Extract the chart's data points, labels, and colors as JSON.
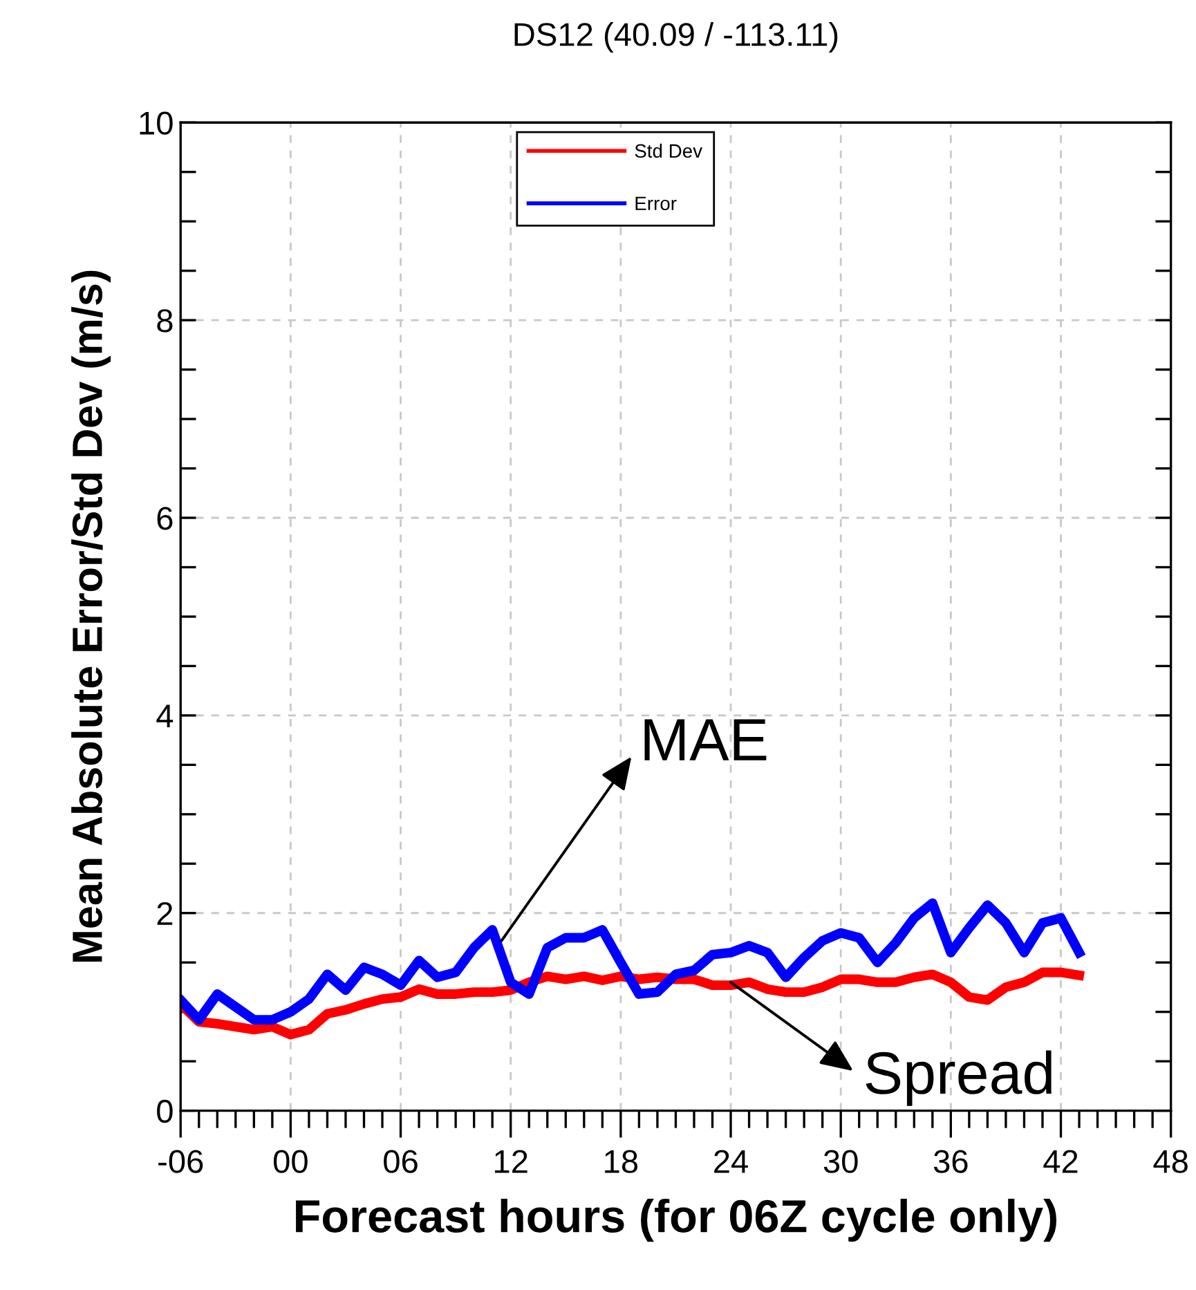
{
  "chart_data": {
    "type": "line",
    "title": "DS12 (40.09 / -113.11)",
    "xlabel": "Forecast hours (for 06Z cycle only)",
    "ylabel": "Mean Absolute Error/Std Dev (m/s)",
    "x": [
      -6,
      -5,
      -4,
      -3,
      -2,
      -1,
      0,
      1,
      2,
      3,
      4,
      5,
      6,
      7,
      8,
      9,
      10,
      11,
      12,
      13,
      14,
      15,
      16,
      17,
      18,
      19,
      20,
      21,
      22,
      23,
      24,
      25,
      26,
      27,
      28,
      29,
      30,
      31,
      32,
      33,
      34,
      35,
      36,
      37,
      38,
      39,
      40,
      41,
      42,
      43
    ],
    "series": [
      {
        "name": "Std Dev",
        "color": "#ff0000",
        "values": [
          1.08,
          0.9,
          0.88,
          0.85,
          0.82,
          0.85,
          0.77,
          0.82,
          0.98,
          1.02,
          1.08,
          1.13,
          1.15,
          1.23,
          1.18,
          1.18,
          1.2,
          1.2,
          1.22,
          1.3,
          1.36,
          1.33,
          1.36,
          1.32,
          1.36,
          1.33,
          1.35,
          1.33,
          1.33,
          1.27,
          1.27,
          1.3,
          1.23,
          1.2,
          1.2,
          1.25,
          1.33,
          1.33,
          1.3,
          1.3,
          1.35,
          1.38,
          1.3,
          1.15,
          1.12,
          1.25,
          1.3,
          1.4,
          1.4,
          1.37
        ]
      },
      {
        "name": "Error",
        "color": "#0000ff",
        "values": [
          1.12,
          0.92,
          1.18,
          1.05,
          0.92,
          0.92,
          1.0,
          1.13,
          1.38,
          1.22,
          1.45,
          1.38,
          1.27,
          1.52,
          1.35,
          1.4,
          1.65,
          1.83,
          1.3,
          1.18,
          1.65,
          1.75,
          1.75,
          1.83,
          1.5,
          1.18,
          1.2,
          1.38,
          1.42,
          1.58,
          1.6,
          1.67,
          1.6,
          1.35,
          1.55,
          1.72,
          1.8,
          1.75,
          1.5,
          1.7,
          1.95,
          2.1,
          1.6,
          1.85,
          2.08,
          1.9,
          1.6,
          1.9,
          1.95,
          1.6
        ]
      }
    ],
    "xlim": [
      -6,
      48
    ],
    "ylim": [
      0,
      10
    ],
    "xticks": [
      {
        "value": -6,
        "label": "-06"
      },
      {
        "value": -5,
        "label": null
      },
      {
        "value": -4,
        "label": null
      },
      {
        "value": -3,
        "label": null
      },
      {
        "value": -2,
        "label": null
      },
      {
        "value": -1,
        "label": null
      },
      {
        "value": 0,
        "label": "00"
      },
      {
        "value": 1,
        "label": null
      },
      {
        "value": 2,
        "label": null
      },
      {
        "value": 3,
        "label": null
      },
      {
        "value": 4,
        "label": null
      },
      {
        "value": 5,
        "label": null
      },
      {
        "value": 6,
        "label": "06"
      },
      {
        "value": 7,
        "label": null
      },
      {
        "value": 8,
        "label": null
      },
      {
        "value": 9,
        "label": null
      },
      {
        "value": 10,
        "label": null
      },
      {
        "value": 11,
        "label": null
      },
      12,
      {
        "value": 13,
        "label": null
      },
      {
        "value": 14,
        "label": null
      },
      {
        "value": 15,
        "label": null
      },
      {
        "value": 16,
        "label": null
      },
      {
        "value": 17,
        "label": null
      },
      18,
      {
        "value": 19,
        "label": null
      },
      {
        "value": 20,
        "label": null
      },
      {
        "value": 21,
        "label": null
      },
      {
        "value": 22,
        "label": null
      },
      {
        "value": 23,
        "label": null
      },
      24,
      {
        "value": 25,
        "label": null
      },
      {
        "value": 26,
        "label": null
      },
      {
        "value": 27,
        "label": null
      },
      {
        "value": 28,
        "label": null
      },
      {
        "value": 29,
        "label": null
      },
      30,
      {
        "value": 31,
        "label": null
      },
      {
        "value": 32,
        "label": null
      },
      {
        "value": 33,
        "label": null
      },
      {
        "value": 34,
        "label": null
      },
      {
        "value": 35,
        "label": null
      },
      36,
      {
        "value": 37,
        "label": null
      },
      {
        "value": 38,
        "label": null
      },
      {
        "value": 39,
        "label": null
      },
      {
        "value": 40,
        "label": null
      },
      {
        "value": 41,
        "label": null
      },
      42,
      {
        "value": 43,
        "label": null
      },
      {
        "value": 44,
        "label": null
      },
      {
        "value": 45,
        "label": null
      },
      {
        "value": 46,
        "label": null
      },
      {
        "value": 47,
        "label": null
      },
      48
    ],
    "yticks": [
      0,
      {
        "value": 0.5,
        "label": null
      },
      {
        "value": 1,
        "label": null
      },
      {
        "value": 1.5,
        "label": null
      },
      2,
      {
        "value": 2.5,
        "label": null
      },
      {
        "value": 3,
        "label": null
      },
      {
        "value": 3.5,
        "label": null
      },
      4,
      {
        "value": 4.5,
        "label": null
      },
      {
        "value": 5,
        "label": null
      },
      {
        "value": 5.5,
        "label": null
      },
      6,
      {
        "value": 6.5,
        "label": null
      },
      {
        "value": 7,
        "label": null
      },
      {
        "value": 7.5,
        "label": null
      },
      8,
      {
        "value": 8.5,
        "label": null
      },
      {
        "value": 9,
        "label": null
      },
      {
        "value": 9.5,
        "label": null
      },
      10
    ],
    "grid": true,
    "legend": "top",
    "line_style": "solid",
    "marker": "none",
    "annotations": [
      {
        "text": "MAE",
        "x": 11.5,
        "y": 1.72
      },
      {
        "text": "Spread",
        "x": 24,
        "y": 1.3
      }
    ]
  }
}
